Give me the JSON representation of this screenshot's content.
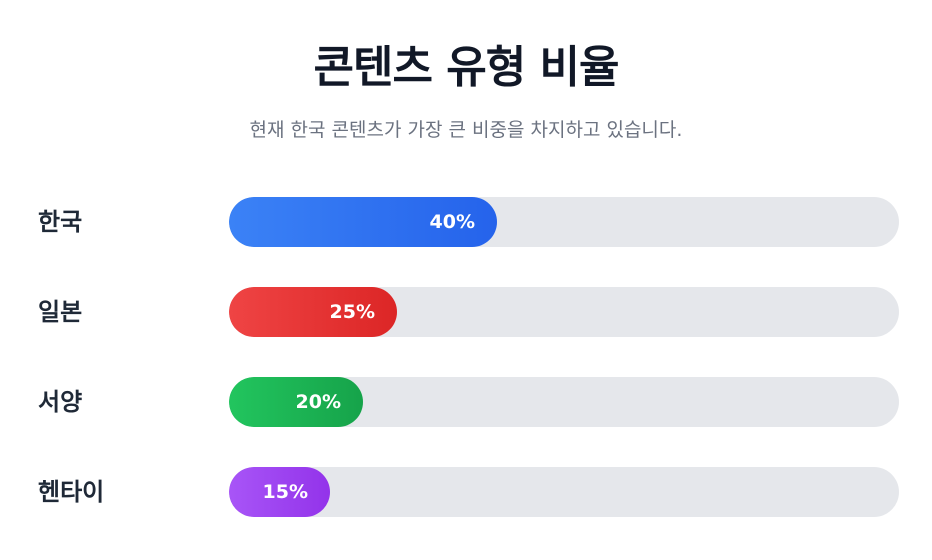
{
  "chart_data": {
    "type": "bar",
    "orientation": "horizontal",
    "title": "콘텐츠 유형 비율",
    "subtitle": "현재 한국 콘텐츠가 가장 큰 비중을 차지하고 있습니다.",
    "categories": [
      "한국",
      "일본",
      "서양",
      "헨타이"
    ],
    "values": [
      40,
      25,
      20,
      15
    ],
    "value_labels": [
      "40%",
      "25%",
      "20%",
      "15%"
    ],
    "unit": "%",
    "xlim": [
      0,
      100
    ],
    "grid": false,
    "legend": "none",
    "colors": [
      [
        "#3b82f6",
        "#2563eb"
      ],
      [
        "#ef4444",
        "#dc2626"
      ],
      [
        "#22c55e",
        "#16a34a"
      ],
      [
        "#a855f7",
        "#9333ea"
      ]
    ],
    "track_color": "#e5e7eb"
  }
}
